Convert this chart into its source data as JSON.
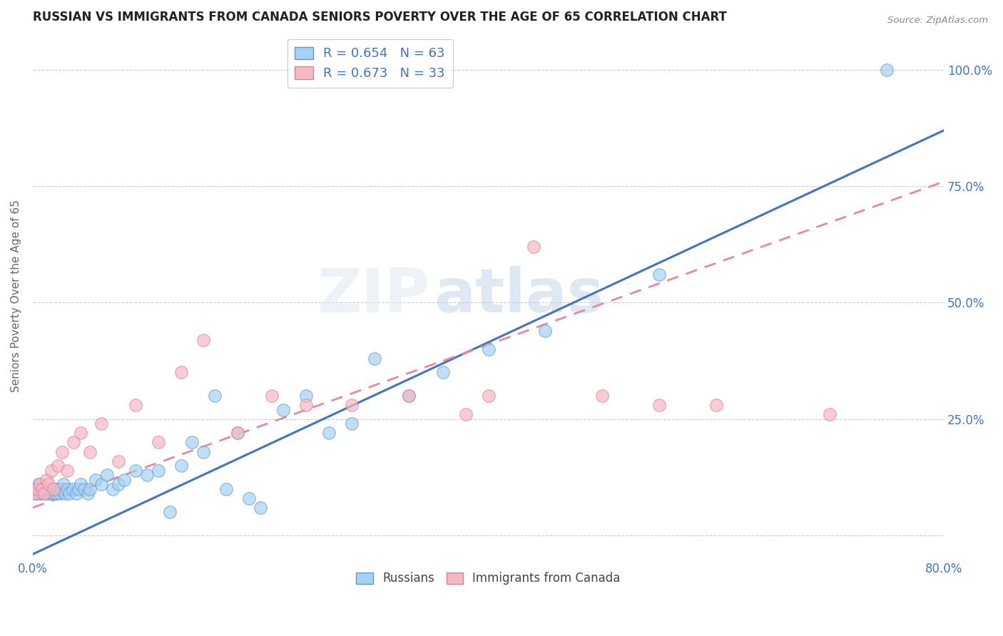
{
  "title": "RUSSIAN VS IMMIGRANTS FROM CANADA SENIORS POVERTY OVER THE AGE OF 65 CORRELATION CHART",
  "source": "Source: ZipAtlas.com",
  "ylabel": "Seniors Poverty Over the Age of 65",
  "xmin": 0.0,
  "xmax": 0.8,
  "ymin": -0.05,
  "ymax": 1.08,
  "x_ticks": [
    0.0,
    0.1,
    0.2,
    0.3,
    0.4,
    0.5,
    0.6,
    0.7,
    0.8
  ],
  "y_ticks": [
    0.0,
    0.25,
    0.5,
    0.75,
    1.0
  ],
  "y_tick_labels_right": [
    "",
    "25.0%",
    "50.0%",
    "75.0%",
    "100.0%"
  ],
  "background_color": "#ffffff",
  "watermark_zip": "ZIP",
  "watermark_atlas": "atlas",
  "blue_color": "#a8d0f0",
  "pink_color": "#f5b8c4",
  "blue_edge_color": "#5b9bd5",
  "pink_edge_color": "#e87a8e",
  "blue_line_color": "#4472c4",
  "pink_line_color": "#e8889a",
  "tick_label_color": "#4472c4",
  "legend_label_blue": "Russians",
  "legend_label_pink": "Immigrants from Canada",
  "russians_x": [
    0.001,
    0.002,
    0.003,
    0.004,
    0.005,
    0.006,
    0.007,
    0.008,
    0.009,
    0.01,
    0.011,
    0.012,
    0.013,
    0.014,
    0.015,
    0.016,
    0.017,
    0.018,
    0.02,
    0.021,
    0.022,
    0.024,
    0.025,
    0.027,
    0.028,
    0.03,
    0.032,
    0.035,
    0.038,
    0.04,
    0.042,
    0.045,
    0.048,
    0.05,
    0.055,
    0.06,
    0.065,
    0.07,
    0.075,
    0.08,
    0.09,
    0.1,
    0.11,
    0.12,
    0.13,
    0.14,
    0.15,
    0.16,
    0.17,
    0.18,
    0.19,
    0.2,
    0.22,
    0.24,
    0.26,
    0.28,
    0.3,
    0.33,
    0.36,
    0.4,
    0.45,
    0.55,
    0.75
  ],
  "russians_y": [
    0.09,
    0.1,
    0.09,
    0.1,
    0.11,
    0.09,
    0.1,
    0.1,
    0.09,
    0.1,
    0.09,
    0.1,
    0.09,
    0.1,
    0.1,
    0.09,
    0.1,
    0.09,
    0.1,
    0.09,
    0.1,
    0.09,
    0.1,
    0.11,
    0.09,
    0.1,
    0.09,
    0.1,
    0.09,
    0.1,
    0.11,
    0.1,
    0.09,
    0.1,
    0.12,
    0.11,
    0.13,
    0.1,
    0.11,
    0.12,
    0.14,
    0.13,
    0.14,
    0.05,
    0.15,
    0.2,
    0.18,
    0.3,
    0.1,
    0.22,
    0.08,
    0.06,
    0.27,
    0.3,
    0.22,
    0.24,
    0.38,
    0.3,
    0.35,
    0.4,
    0.44,
    0.56,
    1.0
  ],
  "canada_x": [
    0.002,
    0.004,
    0.006,
    0.008,
    0.01,
    0.012,
    0.014,
    0.016,
    0.018,
    0.022,
    0.026,
    0.03,
    0.036,
    0.042,
    0.05,
    0.06,
    0.075,
    0.09,
    0.11,
    0.13,
    0.15,
    0.18,
    0.21,
    0.24,
    0.28,
    0.33,
    0.38,
    0.4,
    0.44,
    0.5,
    0.55,
    0.6,
    0.7
  ],
  "canada_y": [
    0.09,
    0.1,
    0.11,
    0.1,
    0.09,
    0.12,
    0.11,
    0.14,
    0.1,
    0.15,
    0.18,
    0.14,
    0.2,
    0.22,
    0.18,
    0.24,
    0.16,
    0.28,
    0.2,
    0.35,
    0.42,
    0.22,
    0.3,
    0.28,
    0.28,
    0.3,
    0.26,
    0.3,
    0.62,
    0.3,
    0.28,
    0.28,
    0.26
  ],
  "blue_line_x0": 0.0,
  "blue_line_y0": -0.04,
  "blue_line_x1": 0.8,
  "blue_line_y1": 0.87,
  "pink_line_x0": 0.0,
  "pink_line_y0": 0.06,
  "pink_line_x1": 0.8,
  "pink_line_y1": 0.76
}
